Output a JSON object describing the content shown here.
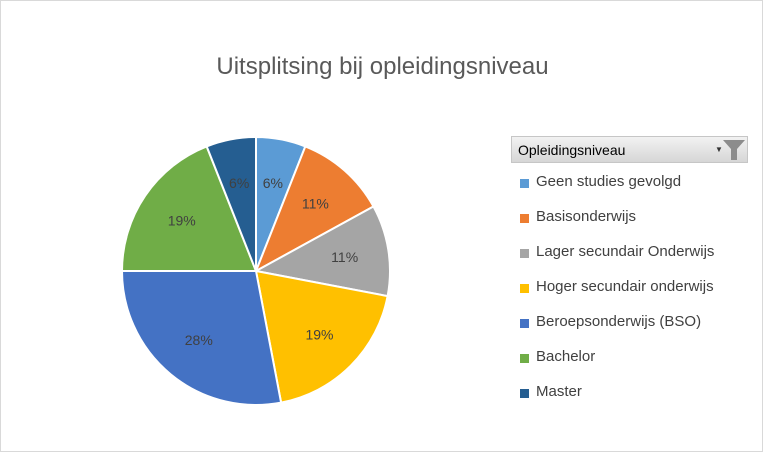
{
  "chart_data": {
    "type": "pie",
    "title": "Uitsplitsing bij opleidingsniveau",
    "legend_title": "Opleidingsniveau",
    "legend_position": "right",
    "categories": [
      "Geen studies gevolgd",
      "Basisonderwijs",
      "Lager secundair Onderwijs",
      "Hoger secundair onderwijs",
      "Beroepsonderwijs (BSO)",
      "Bachelor",
      "Master"
    ],
    "values": [
      6,
      11,
      11,
      19,
      28,
      19,
      6
    ],
    "data_labels": [
      "6%",
      "11%",
      "11%",
      "19%",
      "28%",
      "19%",
      "6%"
    ],
    "colors": [
      "#5b9bd5",
      "#ed7d31",
      "#a5a5a5",
      "#ffc000",
      "#4472c4",
      "#70ad47",
      "#255e91"
    ]
  }
}
